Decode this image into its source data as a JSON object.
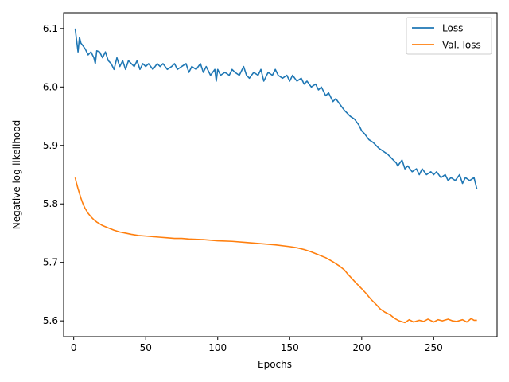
{
  "chart_data": {
    "type": "line",
    "xlabel": "Epochs",
    "ylabel": "Negative log-likelihood",
    "xlim": [
      -7,
      294
    ],
    "ylim": [
      5.573,
      6.127
    ],
    "xticks": [
      0,
      50,
      100,
      150,
      200,
      250
    ],
    "yticks": [
      5.6,
      5.7,
      5.8,
      5.9,
      6.0,
      6.1
    ],
    "xtick_labels": [
      "0",
      "50",
      "100",
      "150",
      "200",
      "250"
    ],
    "ytick_labels": [
      "5.6",
      "5.7",
      "5.8",
      "5.9",
      "6.0",
      "6.1"
    ],
    "grid": false,
    "legend_position": "top-right",
    "series": [
      {
        "name": "Loss",
        "color": "#1f77b4",
        "x": [
          1,
          2,
          3,
          4,
          5,
          6,
          8,
          10,
          12,
          14,
          15,
          16,
          18,
          20,
          22,
          24,
          26,
          28,
          30,
          32,
          34,
          36,
          38,
          40,
          42,
          44,
          46,
          48,
          50,
          52,
          55,
          58,
          60,
          62,
          65,
          68,
          70,
          72,
          75,
          78,
          80,
          82,
          85,
          88,
          90,
          92,
          95,
          98,
          99,
          100,
          102,
          105,
          108,
          110,
          112,
          115,
          118,
          120,
          122,
          125,
          128,
          130,
          132,
          135,
          138,
          140,
          142,
          145,
          148,
          150,
          152,
          155,
          158,
          160,
          162,
          165,
          168,
          170,
          172,
          175,
          177,
          180,
          182,
          185,
          188,
          190,
          192,
          195,
          198,
          200,
          202,
          205,
          208,
          210,
          212,
          215,
          218,
          220,
          222,
          224,
          225,
          228,
          230,
          232,
          235,
          238,
          240,
          242,
          245,
          248,
          250,
          252,
          255,
          258,
          260,
          262,
          265,
          268,
          270,
          272,
          275,
          278,
          280
        ],
        "y": [
          6.1,
          6.08,
          6.06,
          6.085,
          6.075,
          6.072,
          6.065,
          6.055,
          6.06,
          6.05,
          6.04,
          6.062,
          6.06,
          6.05,
          6.06,
          6.045,
          6.04,
          6.03,
          6.05,
          6.035,
          6.045,
          6.03,
          6.045,
          6.04,
          6.035,
          6.045,
          6.03,
          6.04,
          6.035,
          6.04,
          6.03,
          6.04,
          6.035,
          6.04,
          6.03,
          6.035,
          6.04,
          6.03,
          6.035,
          6.04,
          6.025,
          6.035,
          6.03,
          6.04,
          6.025,
          6.035,
          6.02,
          6.03,
          6.01,
          6.03,
          6.02,
          6.025,
          6.02,
          6.03,
          6.025,
          6.02,
          6.035,
          6.02,
          6.015,
          6.025,
          6.02,
          6.03,
          6.01,
          6.025,
          6.02,
          6.03,
          6.02,
          6.015,
          6.02,
          6.01,
          6.02,
          6.01,
          6.015,
          6.005,
          6.01,
          6.0,
          6.005,
          5.995,
          6.0,
          5.985,
          5.99,
          5.975,
          5.98,
          5.97,
          5.96,
          5.955,
          5.95,
          5.945,
          5.935,
          5.925,
          5.92,
          5.91,
          5.905,
          5.9,
          5.895,
          5.89,
          5.885,
          5.88,
          5.875,
          5.87,
          5.865,
          5.875,
          5.86,
          5.865,
          5.855,
          5.86,
          5.85,
          5.86,
          5.85,
          5.855,
          5.85,
          5.855,
          5.845,
          5.85,
          5.84,
          5.845,
          5.84,
          5.85,
          5.835,
          5.845,
          5.84,
          5.845,
          5.825
        ]
      },
      {
        "name": "Val. loss",
        "color": "#ff7f0e",
        "x": [
          1,
          2,
          3,
          4,
          5,
          6,
          7,
          8,
          10,
          12,
          14,
          16,
          18,
          20,
          24,
          28,
          32,
          36,
          40,
          45,
          50,
          55,
          60,
          65,
          70,
          75,
          80,
          90,
          100,
          110,
          120,
          130,
          140,
          150,
          155,
          160,
          165,
          170,
          175,
          180,
          185,
          188,
          190,
          193,
          196,
          200,
          203,
          206,
          210,
          213,
          216,
          220,
          223,
          226,
          230,
          233,
          236,
          240,
          243,
          246,
          250,
          253,
          256,
          260,
          263,
          266,
          270,
          273,
          276,
          278,
          280
        ],
        "y": [
          5.845,
          5.835,
          5.826,
          5.818,
          5.81,
          5.803,
          5.797,
          5.792,
          5.784,
          5.778,
          5.773,
          5.769,
          5.766,
          5.763,
          5.759,
          5.755,
          5.752,
          5.75,
          5.748,
          5.746,
          5.745,
          5.744,
          5.743,
          5.742,
          5.741,
          5.741,
          5.74,
          5.739,
          5.737,
          5.736,
          5.734,
          5.732,
          5.73,
          5.727,
          5.725,
          5.722,
          5.718,
          5.713,
          5.708,
          5.701,
          5.693,
          5.687,
          5.681,
          5.673,
          5.665,
          5.655,
          5.647,
          5.638,
          5.628,
          5.62,
          5.615,
          5.61,
          5.604,
          5.6,
          5.597,
          5.602,
          5.598,
          5.601,
          5.599,
          5.603,
          5.598,
          5.602,
          5.6,
          5.603,
          5.6,
          5.599,
          5.602,
          5.598,
          5.604,
          5.601,
          5.601
        ]
      }
    ]
  }
}
